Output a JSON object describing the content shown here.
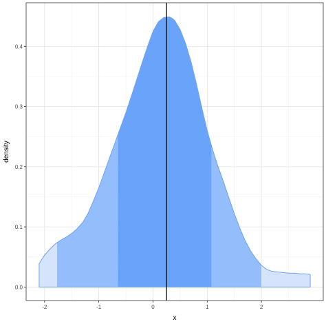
{
  "chart_data": {
    "type": "area",
    "title": "",
    "xlabel": "x",
    "ylabel": "density",
    "xlim": [
      -2.34,
      3.14
    ],
    "ylim": [
      -0.0225,
      0.4725
    ],
    "x_ticks": [
      -2,
      -1,
      0,
      1,
      2
    ],
    "x_tick_labels": [
      "-2",
      "-1",
      "0",
      "1",
      "2"
    ],
    "y_ticks": [
      0.0,
      0.1,
      0.2,
      0.3,
      0.4
    ],
    "y_tick_labels": [
      "0.0",
      "0.1",
      "0.2",
      "0.3",
      "0.4"
    ],
    "grid": true,
    "density_curve": {
      "x": [
        -2.1,
        -2.0,
        -1.9,
        -1.8,
        -1.7,
        -1.6,
        -1.5,
        -1.4,
        -1.3,
        -1.2,
        -1.1,
        -1.0,
        -0.9,
        -0.8,
        -0.7,
        -0.6,
        -0.5,
        -0.4,
        -0.3,
        -0.2,
        -0.1,
        0.0,
        0.1,
        0.2,
        0.3,
        0.35,
        0.4,
        0.5,
        0.6,
        0.7,
        0.8,
        0.9,
        1.0,
        1.1,
        1.2,
        1.3,
        1.4,
        1.5,
        1.6,
        1.7,
        1.8,
        1.9,
        2.0,
        2.1,
        2.2,
        2.3,
        2.4,
        2.5,
        2.6,
        2.7,
        2.8,
        2.9
      ],
      "y": [
        0.039,
        0.053,
        0.063,
        0.072,
        0.078,
        0.083,
        0.089,
        0.097,
        0.107,
        0.122,
        0.143,
        0.165,
        0.19,
        0.215,
        0.24,
        0.265,
        0.29,
        0.317,
        0.345,
        0.373,
        0.4,
        0.425,
        0.441,
        0.448,
        0.449,
        0.447,
        0.443,
        0.428,
        0.405,
        0.375,
        0.338,
        0.298,
        0.26,
        0.228,
        0.2,
        0.175,
        0.148,
        0.122,
        0.098,
        0.077,
        0.06,
        0.047,
        0.036,
        0.029,
        0.026,
        0.025,
        0.024,
        0.023,
        0.023,
        0.022,
        0.022,
        0.021
      ]
    },
    "bands": [
      {
        "from": -2.1,
        "to": -1.77,
        "color": "#d6e4fb"
      },
      {
        "from": -1.77,
        "to": -0.65,
        "color": "#94bdfb"
      },
      {
        "from": -0.65,
        "to": 1.08,
        "color": "#6aa3fa"
      },
      {
        "from": 1.08,
        "to": 2.0,
        "color": "#94bdfb"
      },
      {
        "from": 2.0,
        "to": 2.9,
        "color": "#d6e4fb"
      }
    ],
    "outline_color": "#6fa3ea",
    "vline_x": 0.25,
    "vline_color": "#000000"
  }
}
